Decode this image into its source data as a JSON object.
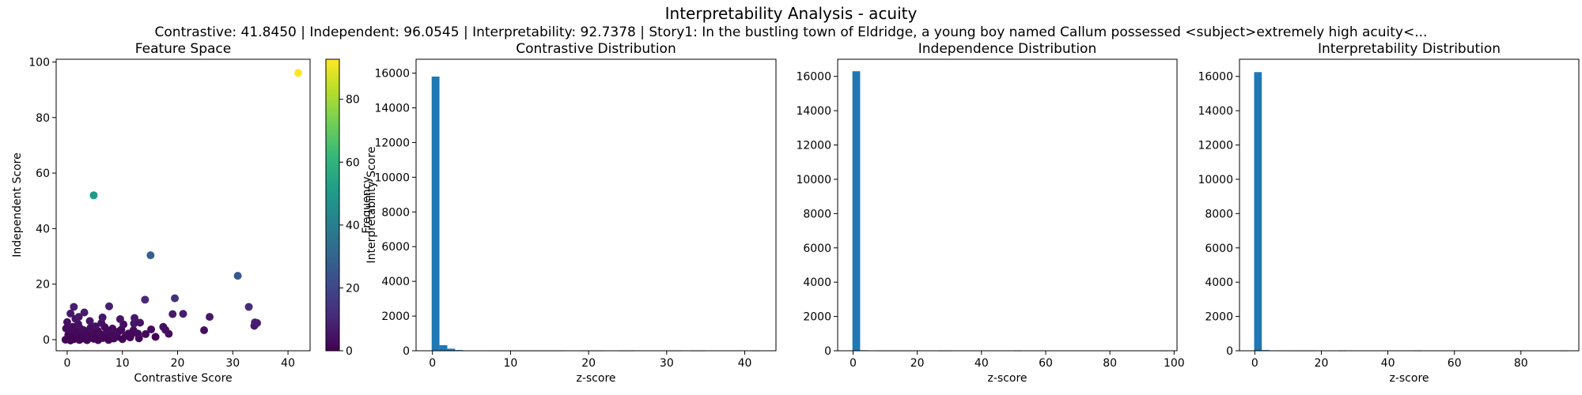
{
  "figure": {
    "title": "Interpretability Analysis - acuity",
    "subtitle": "Contrastive: 41.8450 | Independent: 96.0545 | Interpretability: 92.7378 | Story1: In the bustling town of Eldridge, a young boy named Callum possessed <subject>extremely high acuity<..."
  },
  "chart_data": [
    {
      "type": "scatter",
      "title": "Feature Space",
      "xlabel": "Contrastive Score",
      "ylabel": "Independent Score",
      "xlim": [
        -2,
        44
      ],
      "ylim": [
        -4,
        101
      ],
      "xticks": [
        0,
        10,
        20,
        30,
        40
      ],
      "yticks": [
        0,
        20,
        40,
        60,
        80,
        100
      ],
      "colormap": "viridis",
      "colorbar": {
        "label": "Interpretability Score",
        "range": [
          0,
          92.7378
        ],
        "ticks": [
          0,
          20,
          40,
          60,
          80
        ]
      },
      "points": [
        [
          41.845,
          96.0545,
          92.7378
        ],
        [
          4.8,
          52.0,
          50.0
        ],
        [
          15.1,
          30.4,
          28.0
        ],
        [
          30.9,
          23.0,
          26.0
        ],
        [
          32.9,
          11.8,
          12.0
        ],
        [
          34.0,
          6.2,
          8.0
        ],
        [
          34.4,
          6.0,
          7.0
        ],
        [
          33.9,
          5.0,
          6.0
        ],
        [
          25.8,
          8.2,
          6.0
        ],
        [
          24.8,
          3.4,
          4.0
        ],
        [
          19.5,
          14.9,
          13.0
        ],
        [
          21.0,
          9.3,
          8.0
        ],
        [
          19.1,
          9.2,
          7.0
        ],
        [
          14.1,
          14.4,
          11.0
        ],
        [
          17.8,
          3.5,
          4.0
        ],
        [
          17.4,
          4.6,
          4.0
        ],
        [
          18.4,
          2.1,
          3.0
        ],
        [
          15.2,
          3.7,
          3.0
        ],
        [
          13.2,
          6.1,
          5.0
        ],
        [
          12.2,
          7.8,
          6.0
        ],
        [
          12.1,
          5.8,
          5.0
        ],
        [
          12.8,
          2.2,
          3.0
        ],
        [
          11.1,
          2.2,
          2.0
        ],
        [
          10.2,
          5.5,
          4.0
        ],
        [
          9.6,
          7.4,
          5.0
        ],
        [
          8.6,
          1.3,
          2.0
        ],
        [
          7.6,
          12.0,
          8.0
        ],
        [
          7.2,
          3.3,
          3.0
        ],
        [
          6.4,
          8.0,
          6.0
        ],
        [
          5.1,
          4.8,
          4.0
        ],
        [
          4.1,
          6.7,
          5.0
        ],
        [
          3.5,
          1.7,
          2.0
        ],
        [
          3.1,
          9.8,
          7.0
        ],
        [
          1.2,
          11.8,
          8.0
        ],
        [
          0.6,
          9.4,
          6.0
        ],
        [
          1.5,
          7.5,
          5.0
        ],
        [
          2.0,
          5.6,
          4.0
        ],
        [
          0.0,
          6.3,
          4.0
        ],
        [
          -0.2,
          4.0,
          3.0
        ],
        [
          -0.3,
          0.0,
          1.0
        ],
        [
          0.3,
          0.5,
          1.0
        ],
        [
          0.6,
          -0.3,
          1.0
        ],
        [
          0.9,
          1.2,
          1.0
        ],
        [
          1.2,
          0.2,
          1.0
        ],
        [
          1.5,
          2.8,
          2.0
        ],
        [
          1.8,
          0.8,
          1.0
        ],
        [
          2.2,
          -0.1,
          1.0
        ],
        [
          2.5,
          1.6,
          1.0
        ],
        [
          2.8,
          0.4,
          1.0
        ],
        [
          3.2,
          2.2,
          2.0
        ],
        [
          3.6,
          -0.2,
          1.0
        ],
        [
          4.0,
          1.0,
          1.0
        ],
        [
          4.4,
          2.8,
          2.0
        ],
        [
          4.8,
          0.3,
          1.0
        ],
        [
          5.2,
          1.5,
          1.0
        ],
        [
          5.6,
          -0.2,
          1.0
        ],
        [
          6.0,
          2.0,
          2.0
        ],
        [
          6.5,
          0.6,
          1.0
        ],
        [
          7.0,
          1.2,
          1.0
        ],
        [
          7.5,
          -0.1,
          1.0
        ],
        [
          8.0,
          2.6,
          2.0
        ],
        [
          8.4,
          0.4,
          1.0
        ],
        [
          9.0,
          1.0,
          1.0
        ],
        [
          9.4,
          3.0,
          2.0
        ],
        [
          10.0,
          0.2,
          1.0
        ],
        [
          10.6,
          1.4,
          1.0
        ],
        [
          11.4,
          0.8,
          1.0
        ],
        [
          12.0,
          3.4,
          2.0
        ],
        [
          13.0,
          0.5,
          1.0
        ],
        [
          14.2,
          2.0,
          2.0
        ],
        [
          0.5,
          3.5,
          2.0
        ],
        [
          1.0,
          4.6,
          3.0
        ],
        [
          2.4,
          4.0,
          3.0
        ],
        [
          3.0,
          3.4,
          2.0
        ],
        [
          4.2,
          4.2,
          3.0
        ],
        [
          5.5,
          3.2,
          2.0
        ],
        [
          6.8,
          4.5,
          3.0
        ],
        [
          8.2,
          4.0,
          3.0
        ],
        [
          9.8,
          3.6,
          2.0
        ],
        [
          0.2,
          1.8,
          1.0
        ],
        [
          1.7,
          1.4,
          1.0
        ],
        [
          2.9,
          2.6,
          2.0
        ],
        [
          3.9,
          0.6,
          1.0
        ],
        [
          5.9,
          0.9,
          1.0
        ],
        [
          7.3,
          2.4,
          2.0
        ],
        [
          6.2,
          6.0,
          4.0
        ],
        [
          2.1,
          8.2,
          6.0
        ],
        [
          11.6,
          1.8,
          1.0
        ],
        [
          16.0,
          1.0,
          1.0
        ]
      ]
    },
    {
      "type": "bar",
      "title": "Contrastive Distribution",
      "xlabel": "z-score",
      "ylabel": "Frequency",
      "xlim": [
        -2.1,
        44.0
      ],
      "ylim": [
        0,
        16800
      ],
      "xticks": [
        0,
        10,
        20,
        30,
        40
      ],
      "yticks": [
        0,
        2000,
        4000,
        6000,
        8000,
        10000,
        12000,
        14000,
        16000
      ],
      "bin_start": -0.1,
      "bin_width": 1.0,
      "values": [
        15800,
        320,
        120,
        40,
        15,
        8,
        5,
        3,
        2,
        2,
        1,
        1,
        1,
        1,
        1,
        1,
        1,
        0,
        0,
        1,
        1,
        1,
        0,
        0,
        1,
        1,
        0,
        0,
        0,
        0,
        1,
        1,
        0,
        1,
        1,
        0,
        0,
        0,
        0,
        0,
        0,
        1
      ]
    },
    {
      "type": "bar",
      "title": "Independence Distribution",
      "xlabel": "z-score",
      "ylabel": "",
      "xlim": [
        -4.8,
        100.9
      ],
      "ylim": [
        0,
        17000
      ],
      "xticks": [
        0,
        20,
        40,
        60,
        80,
        100
      ],
      "yticks": [
        0,
        2000,
        4000,
        6000,
        8000,
        10000,
        12000,
        14000,
        16000
      ],
      "bin_start": -0.2,
      "bin_width": 2.4,
      "values": [
        16300,
        30,
        5,
        2,
        1,
        1,
        1,
        1,
        0,
        0,
        0,
        1,
        1,
        0,
        0,
        0,
        0,
        0,
        0,
        0,
        0,
        1,
        0,
        0,
        0,
        0,
        0,
        0,
        0,
        0,
        0,
        0,
        0,
        0,
        0,
        0,
        0,
        0,
        0,
        0,
        1
      ]
    },
    {
      "type": "bar",
      "title": "Interpretability Distribution",
      "xlabel": "z-score",
      "ylabel": "",
      "xlim": [
        -4.6,
        97.4
      ],
      "ylim": [
        0,
        17000
      ],
      "xticks": [
        0,
        20,
        40,
        60,
        80
      ],
      "yticks": [
        0,
        2000,
        4000,
        6000,
        8000,
        10000,
        12000,
        14000,
        16000
      ],
      "bin_start": -0.2,
      "bin_width": 2.3,
      "values": [
        16250,
        40,
        8,
        3,
        2,
        1,
        1,
        1,
        0,
        0,
        0,
        1,
        0,
        0,
        0,
        0,
        0,
        0,
        0,
        0,
        0,
        1,
        0,
        0,
        0,
        0,
        0,
        0,
        0,
        0,
        0,
        0,
        0,
        0,
        0,
        0,
        0,
        0,
        0,
        0,
        1
      ]
    }
  ]
}
